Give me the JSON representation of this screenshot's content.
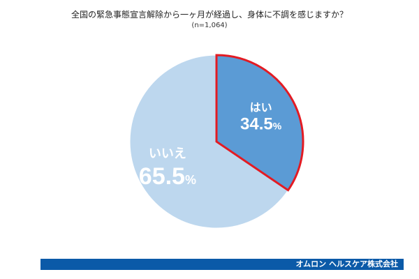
{
  "chart_data": {
    "type": "pie",
    "title": "全国の緊急事態宣言解除から一ヶ月が経過し、身体に不調を感じますか？",
    "subtitle": "(n=1,064)",
    "slices": [
      {
        "label": "はい",
        "value": 34.5,
        "display_value": "34.5",
        "unit": "%",
        "color": "#5b9bd5",
        "highlight": true,
        "highlight_color": "#e31b23"
      },
      {
        "label": "いいえ",
        "value": 65.5,
        "display_value": "65.5",
        "unit": "%",
        "color": "#bdd7ee",
        "highlight": false
      }
    ],
    "legend": "none",
    "start_angle": "12 o'clock",
    "direction": "clockwise"
  },
  "footer": {
    "company": "オムロン ヘルスケア株式会社"
  }
}
